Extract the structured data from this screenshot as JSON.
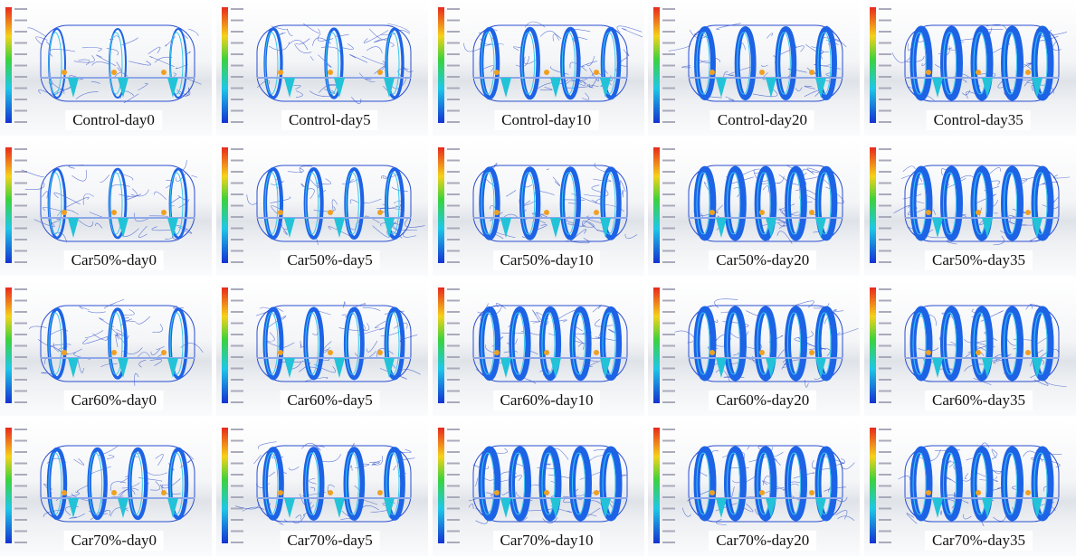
{
  "grid": [
    [
      "Control-day0",
      "Control-day5",
      "Control-day10",
      "Control-day20",
      "Control-day35"
    ],
    [
      "Car50%-day0",
      "Car50%-day5",
      "Car50%-day10",
      "Car50%-day20",
      "Car50%-day35"
    ],
    [
      "Car60%-day0",
      "Car60%-day5",
      "Car60%-day10",
      "Car60%-day20",
      "Car60%-day35"
    ],
    [
      "Car70%-day0",
      "Car70%-day5",
      "Car70%-day10",
      "Car70%-day20",
      "Car70%-day35"
    ]
  ]
}
